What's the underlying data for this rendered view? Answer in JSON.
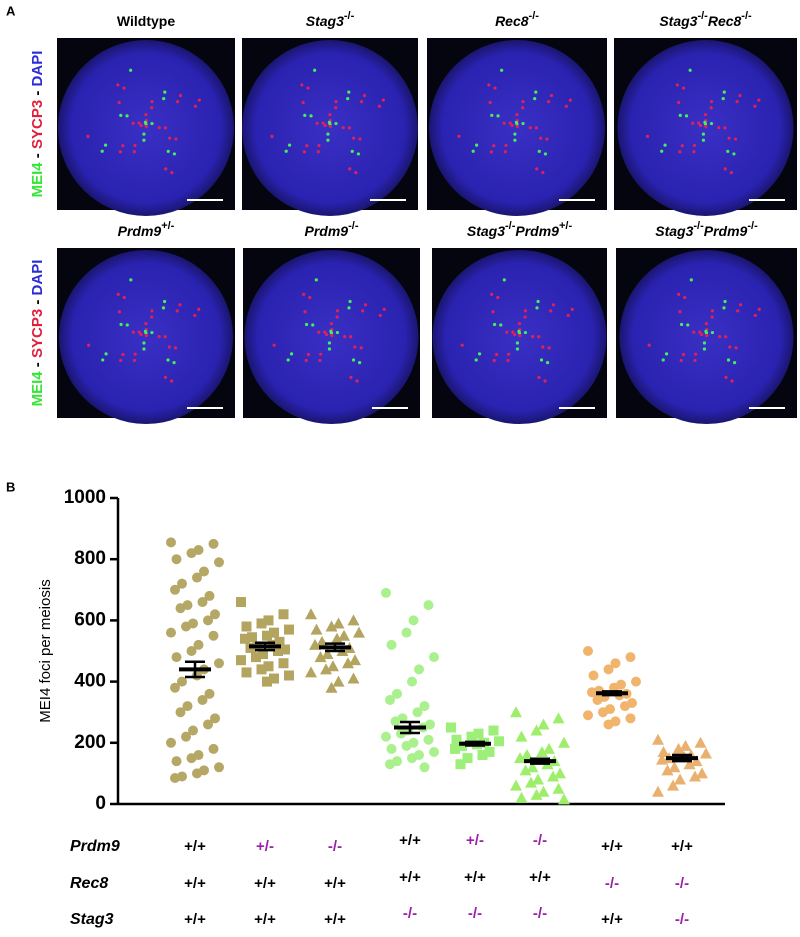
{
  "panel_a": {
    "letter": "A",
    "channel_labels": [
      [
        {
          "text": "MEI4",
          "color": "#33e633"
        },
        {
          "text": " - ",
          "color": "#000000"
        },
        {
          "text": "SYCP3",
          "color": "#e0203a"
        },
        {
          "text": " - ",
          "color": "#000000"
        },
        {
          "text": "DAPI",
          "color": "#2b2bd8"
        }
      ],
      [
        {
          "text": "MEI4",
          "color": "#33e633"
        },
        {
          "text": " - ",
          "color": "#000000"
        },
        {
          "text": "SYCP3",
          "color": "#e0203a"
        },
        {
          "text": " - ",
          "color": "#000000"
        },
        {
          "text": "DAPI",
          "color": "#2b2bd8"
        }
      ]
    ],
    "images": [
      {
        "label": [
          {
            "text": "Wildtype"
          }
        ]
      },
      {
        "label": [
          {
            "text": "Stag3",
            "sup": "-/-"
          }
        ]
      },
      {
        "label": [
          {
            "text": "Rec8",
            "sup": "-/-"
          }
        ]
      },
      {
        "label": [
          {
            "text": "Stag3",
            "sup": "-/-"
          },
          {
            "text": "Rec8",
            "sup": "-/-"
          }
        ]
      },
      {
        "label": [
          {
            "text": "Prdm9",
            "sup": "+/-"
          }
        ]
      },
      {
        "label": [
          {
            "text": "Prdm9",
            "sup": "-/-"
          }
        ]
      },
      {
        "label": [
          {
            "text": "Stag3",
            "sup": "-/-"
          },
          {
            "text": "Prdm9",
            "sup": "+/-"
          }
        ]
      },
      {
        "label": [
          {
            "text": "Stag3",
            "sup": "-/-"
          },
          {
            "text": "Prdm9",
            "sup": "-/-"
          }
        ]
      }
    ]
  },
  "chart_data": {
    "type": "dot",
    "letter": "B",
    "ylabel": "MEI4 foci per meiosis",
    "ylim": [
      0,
      1000
    ],
    "yticks": [
      0,
      200,
      400,
      600,
      800,
      1000
    ],
    "series": [
      {
        "color": "#b5a866",
        "marker": "circle",
        "mean": 440,
        "sem": 25,
        "values": [
          855,
          850,
          830,
          820,
          800,
          790,
          760,
          740,
          720,
          700,
          680,
          660,
          650,
          640,
          620,
          600,
          590,
          580,
          560,
          550,
          520,
          500,
          480,
          460,
          440,
          420,
          400,
          380,
          360,
          340,
          320,
          300,
          280,
          260,
          240,
          220,
          200,
          180,
          160,
          150,
          140,
          120,
          110,
          100,
          90,
          85
        ]
      },
      {
        "color": "#b3a460",
        "marker": "square",
        "mean": 515,
        "sem": 12,
        "values": [
          660,
          620,
          600,
          590,
          580,
          570,
          560,
          550,
          545,
          540,
          530,
          520,
          515,
          510,
          505,
          500,
          490,
          480,
          470,
          460,
          450,
          440,
          430,
          420,
          410,
          400
        ]
      },
      {
        "color": "#b3a460",
        "marker": "triangle",
        "mean": 512,
        "sem": 12,
        "values": [
          620,
          600,
          590,
          580,
          570,
          560,
          550,
          540,
          530,
          520,
          510,
          500,
          490,
          480,
          470,
          460,
          450,
          440,
          430,
          410,
          400,
          380
        ]
      },
      {
        "color": "#aaf08c",
        "marker": "circle",
        "mean": 250,
        "sem": 18,
        "values": [
          690,
          650,
          600,
          560,
          520,
          480,
          440,
          400,
          360,
          340,
          320,
          300,
          280,
          270,
          260,
          250,
          240,
          230,
          220,
          210,
          200,
          190,
          180,
          170,
          160,
          150,
          140,
          130,
          120
        ]
      },
      {
        "color": "#9eee7a",
        "marker": "square",
        "mean": 197,
        "sem": 6,
        "values": [
          250,
          240,
          230,
          220,
          210,
          205,
          200,
          195,
          190,
          180,
          170,
          160,
          150,
          130
        ]
      },
      {
        "color": "#9eee6c",
        "marker": "triangle",
        "mean": 140,
        "sem": 8,
        "values": [
          300,
          280,
          260,
          240,
          220,
          200,
          180,
          170,
          160,
          150,
          140,
          130,
          120,
          110,
          100,
          90,
          80,
          70,
          60,
          50,
          40,
          30,
          20,
          15
        ]
      },
      {
        "color": "#f0b46c",
        "marker": "circle",
        "mean": 362,
        "sem": 6,
        "values": [
          500,
          480,
          460,
          440,
          420,
          400,
          390,
          380,
          370,
          365,
          360,
          355,
          350,
          340,
          330,
          320,
          310,
          300,
          290,
          280,
          270,
          260
        ]
      },
      {
        "color": "#e9b070",
        "marker": "triangle",
        "mean": 150,
        "sem": 10,
        "values": [
          210,
          200,
          190,
          180,
          170,
          165,
          160,
          155,
          150,
          145,
          140,
          130,
          120,
          110,
          100,
          90,
          80,
          60,
          40
        ]
      }
    ],
    "genotypes": {
      "rows": [
        {
          "name": "Prdm9",
          "values": [
            "+/+",
            "+/-",
            "-/-",
            "+/+",
            "+/-",
            "-/-",
            "+/+",
            "+/+"
          ],
          "colors": [
            "#000",
            "#9b1fa8",
            "#9b1fa8",
            "#000",
            "#9b1fa8",
            "#9b1fa8",
            "#000",
            "#000"
          ]
        },
        {
          "name": "Rec8",
          "values": [
            "+/+",
            "+/+",
            "+/+",
            "+/+",
            "+/+",
            "+/+",
            "-/-",
            "-/-"
          ],
          "colors": [
            "#000",
            "#000",
            "#000",
            "#000",
            "#000",
            "#000",
            "#9b1fa8",
            "#9b1fa8"
          ]
        },
        {
          "name": "Stag3",
          "values": [
            "+/+",
            "+/+",
            "+/+",
            "-/-",
            "-/-",
            "-/-",
            "+/+",
            "-/-"
          ],
          "colors": [
            "#000",
            "#000",
            "#000",
            "#9b1fa8",
            "#9b1fa8",
            "#9b1fa8",
            "#000",
            "#9b1fa8"
          ]
        }
      ]
    }
  }
}
